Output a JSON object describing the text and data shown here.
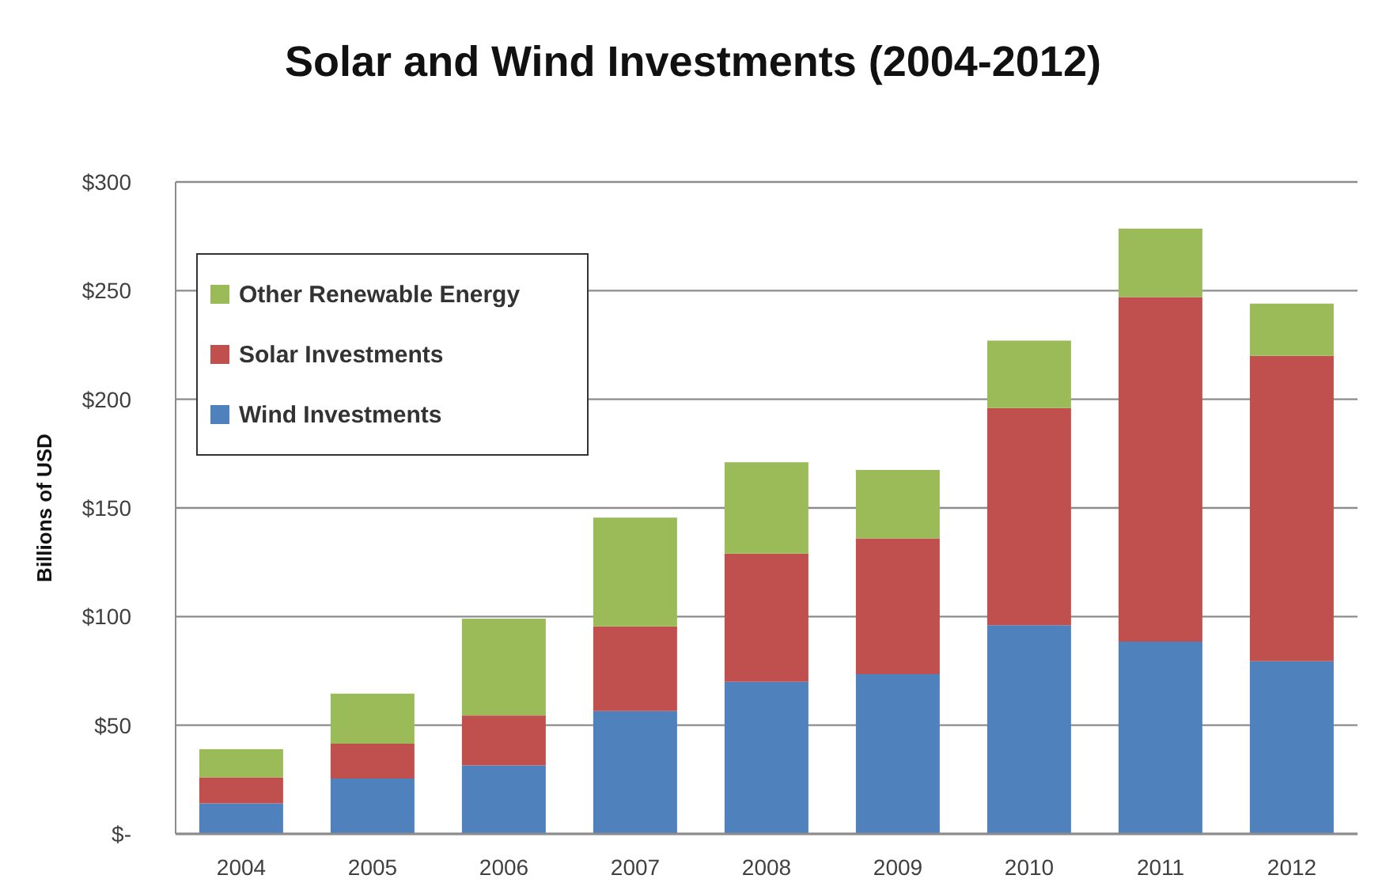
{
  "chart_data": {
    "type": "bar",
    "title": "Solar and Wind Investments (2004-2012)",
    "ylabel": "Billions of USD",
    "categories": [
      "2004",
      "2005",
      "2006",
      "2007",
      "2008",
      "2009",
      "2010",
      "2011",
      "2012"
    ],
    "series": [
      {
        "name": "Wind Investments",
        "color": "#4f81bd",
        "values": [
          14,
          25.5,
          31.5,
          56.5,
          70,
          73.5,
          96,
          88.5,
          79.5
        ]
      },
      {
        "name": "Solar Investments",
        "color": "#c0504d",
        "values": [
          12,
          16,
          23,
          39,
          59,
          62.5,
          100,
          158.5,
          140.5
        ]
      },
      {
        "name": "Other Renewable Energy",
        "color": "#9bbb59",
        "values": [
          13,
          23,
          44.5,
          50,
          42,
          31.5,
          31,
          31.5,
          24
        ]
      }
    ],
    "stacked": true,
    "ylim": [
      0,
      300
    ],
    "yticks": [
      {
        "value": 0,
        "label": "$-"
      },
      {
        "value": 50,
        "label": "$50"
      },
      {
        "value": 100,
        "label": "$100"
      },
      {
        "value": 150,
        "label": "$150"
      },
      {
        "value": 200,
        "label": "$200"
      },
      {
        "value": 250,
        "label": "$250"
      },
      {
        "value": 300,
        "label": "$300"
      }
    ],
    "grid": "y",
    "legend": "top left"
  }
}
